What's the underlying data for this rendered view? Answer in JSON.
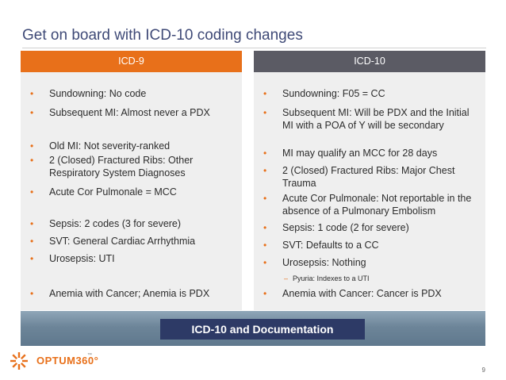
{
  "slide": {
    "title": "Get on board with ICD-10 coding changes",
    "page_number": "9",
    "banner": "ICD-10 and Documentation",
    "logo": "OPTUM360°",
    "logo_suffix": "™"
  },
  "icd9": {
    "header": "ICD-9",
    "items": [
      "Sundowning: No code",
      "Subsequent MI: Almost never a PDX",
      "Old MI: Not severity-ranked",
      "2 (Closed) Fractured Ribs: Other Respiratory System Diagnoses",
      "Acute Cor Pulmonale = MCC",
      "Sepsis: 2 codes (3 for severe)",
      "SVT: General Cardiac Arrhythmia",
      "Urosepsis: UTI",
      "Anemia with Cancer; Anemia is PDX"
    ]
  },
  "icd10": {
    "header": "ICD-10",
    "items": [
      "Sundowning: F05 = CC",
      "Subsequent MI: Will be PDX and the Initial MI with a POA of Y will be secondary",
      "MI may qualify an MCC for 28 days",
      "2 (Closed) Fractured Ribs: Major Chest Trauma",
      "Acute Cor Pulmonale: Not reportable in the absence of a Pulmonary Embolism",
      "Sepsis: 1 code (2 for severe)",
      "SVT: Defaults to a CC",
      "Urosepsis: Nothing",
      "Anemia with Cancer: Cancer is PDX"
    ],
    "subitem": "Pyuria: Indexes to a UTI"
  },
  "bullet": "•",
  "dash": "–",
  "colors": {
    "accent": "#e8701a",
    "icd10_header": "#5b5b64",
    "title": "#3f4a77",
    "banner_bar": "#2d3a66",
    "column_bg": "#efefef"
  }
}
